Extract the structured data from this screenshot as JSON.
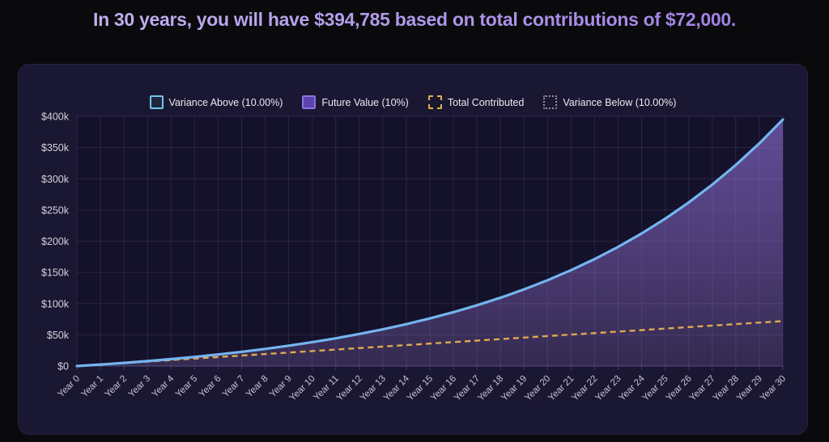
{
  "title": "In 30 years, you will have $394,785 based on total contributions of $72,000.",
  "summary": {
    "years": 30,
    "future_value_text": "$394,785",
    "total_contributions_text": "$72,000",
    "interest_rate_text": "10%"
  },
  "colors": {
    "page_bg": "#0a0a0c",
    "panel_bg": "#1a1732",
    "plot_bg": "#14112a",
    "grid": "rgba(150,132,216,0.17)",
    "axis_line": "rgba(150,132,216,0.30)",
    "line_blue": "#74b4ef",
    "line_yellow": "#dfa94f",
    "area_top": "#614c96",
    "area_mid": "#4c3b74",
    "area_bottom": "#342a50",
    "y_label_color": "#d4d2de",
    "x_label_color": "#c6c4d2",
    "legend_above": "#6ec7e7",
    "legend_future_border": "#8e72de",
    "legend_future_fill": "#5c44ae",
    "legend_contrib": "#e3b14d",
    "legend_below": "#95939f",
    "title_grad_from": "#c6b7f2",
    "title_grad_to": "#9b7ae4"
  },
  "legend": {
    "items": [
      {
        "label": "Variance Above (10.00%)",
        "swatch": "line-cyan-square"
      },
      {
        "label": "Future Value (10%)",
        "swatch": "filled-purple-square"
      },
      {
        "label": "Total Contributed",
        "swatch": "dashed-yellow-square"
      },
      {
        "label": "Variance Below (10.00%)",
        "swatch": "dotted-gray-square"
      }
    ]
  },
  "chart_data": {
    "type": "area",
    "x_labels": [
      "Year 0",
      "Year 1",
      "Year 2",
      "Year 3",
      "Year 4",
      "Year 5",
      "Year 6",
      "Year 7",
      "Year 8",
      "Year 9",
      "Year 10",
      "Year 11",
      "Year 12",
      "Year 13",
      "Year 14",
      "Year 15",
      "Year 16",
      "Year 17",
      "Year 18",
      "Year 19",
      "Year 20",
      "Year 21",
      "Year 22",
      "Year 23",
      "Year 24",
      "Year 25",
      "Year 26",
      "Year 27",
      "Year 28",
      "Year 29",
      "Year 30"
    ],
    "y_tick_labels": [
      "$0",
      "$50k",
      "$100k",
      "$150k",
      "$200k",
      "$250k",
      "$300k",
      "$350k",
      "$400k"
    ],
    "ylim": [
      0,
      400000
    ],
    "grid": true,
    "legend_position": "top",
    "series": [
      {
        "name": "Future Value (10%)",
        "style": "purple-gradient-area-with-blue-line",
        "values": [
          0,
          2400,
          5040,
          7944,
          11138,
          14652,
          18517,
          22769,
          27446,
          32591,
          38250,
          44475,
          51322,
          58855,
          67140,
          76254,
          86279,
          97307,
          109438,
          122782,
          137460,
          153606,
          171367,
          190903,
          212394,
          236033,
          262036,
          290640,
          322104,
          356714,
          394785
        ]
      },
      {
        "name": "Total Contributed",
        "style": "dashed-yellow-line",
        "values": [
          0,
          2400,
          4800,
          7200,
          9600,
          12000,
          14400,
          16800,
          19200,
          21600,
          24000,
          26400,
          28800,
          31200,
          33600,
          36000,
          38400,
          40800,
          43200,
          45600,
          48000,
          50400,
          52800,
          55200,
          57600,
          60000,
          62400,
          64800,
          67200,
          69600,
          72000
        ]
      }
    ],
    "notes": "Variance Above (10.00%) line coincides with the top edge of the Future Value area; Variance Below (10.00%) is not visibly plotted."
  }
}
